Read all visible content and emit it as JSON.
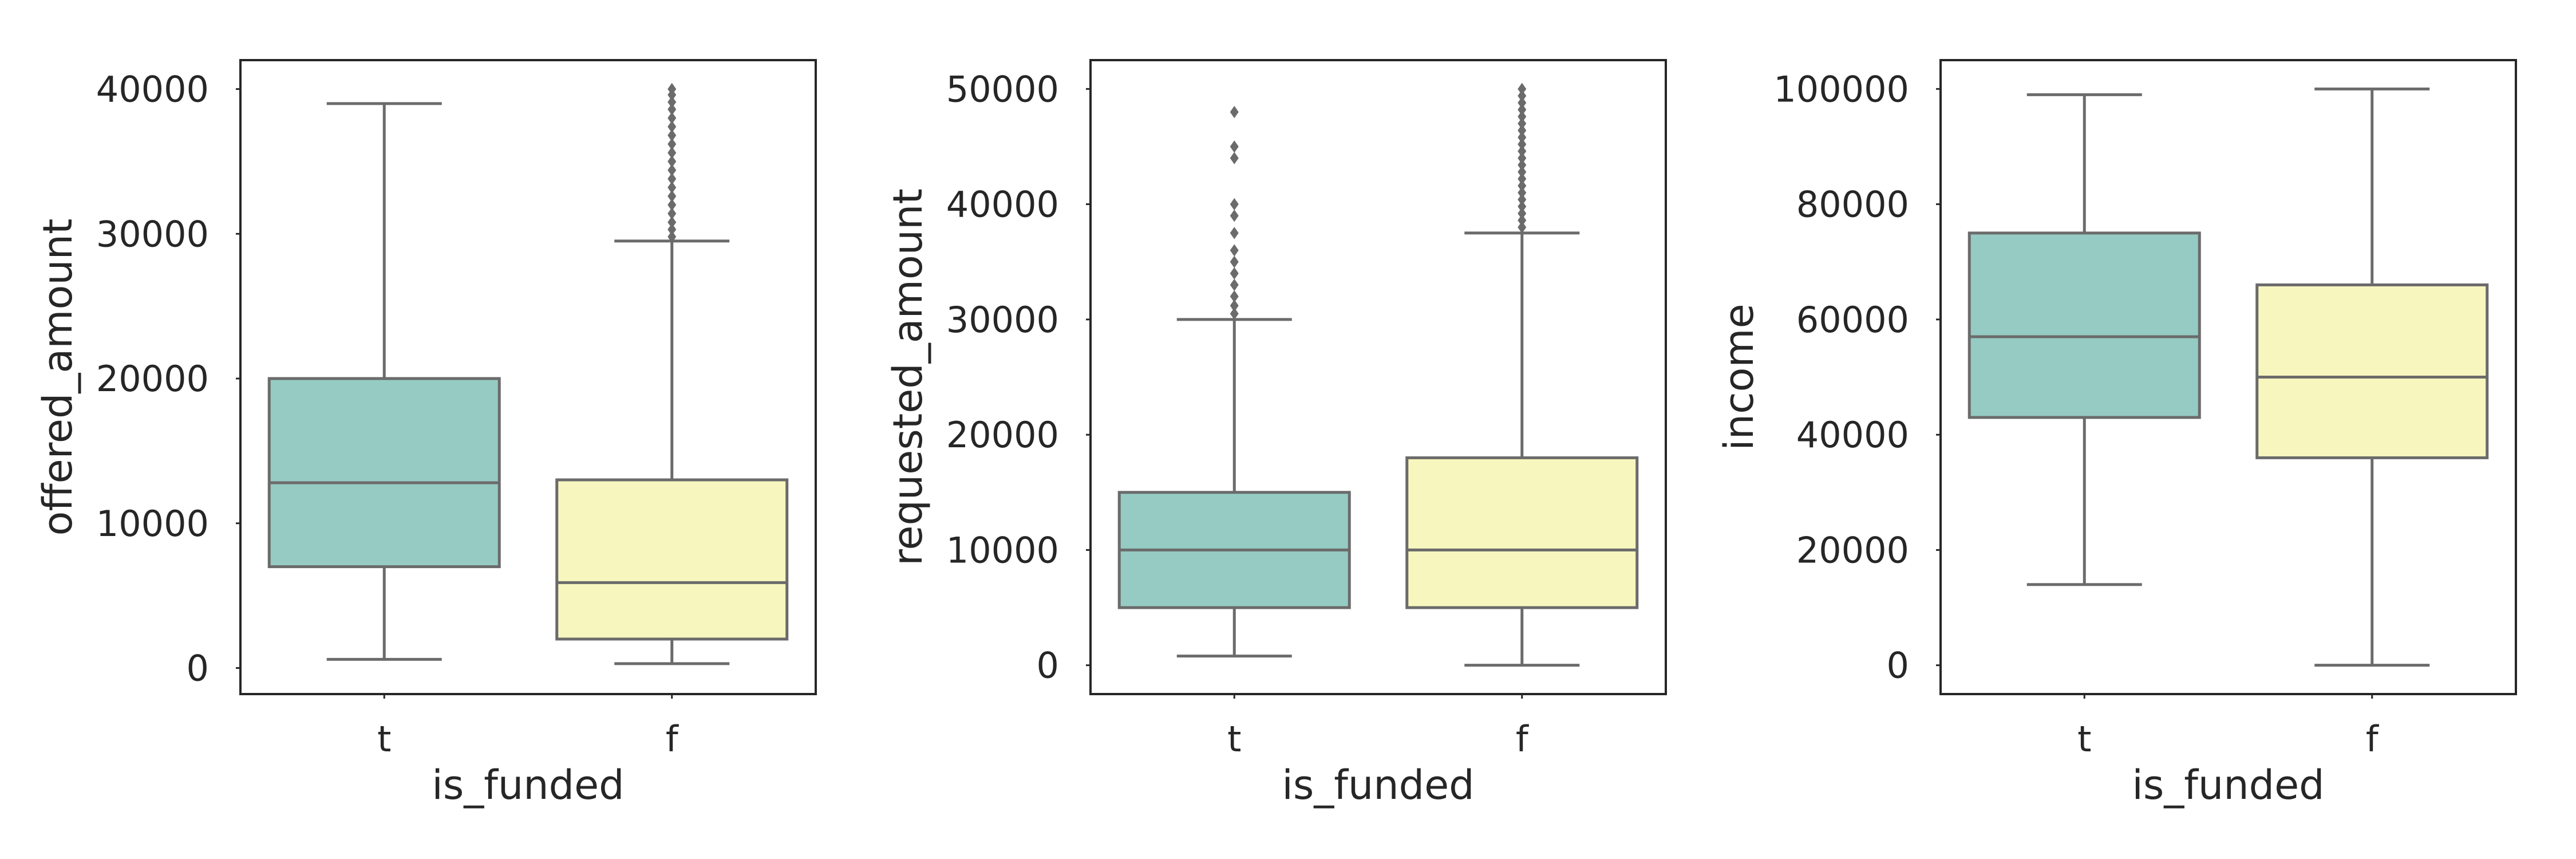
{
  "chart_data": [
    {
      "type": "box",
      "xlabel": "is_funded",
      "ylabel": "offered_amount",
      "ylim": [
        -1800,
        42000
      ],
      "yticks": [
        0,
        10000,
        20000,
        30000,
        40000
      ],
      "categories": [
        "t",
        "f"
      ],
      "boxes": [
        {
          "category": "t",
          "whisker_low": 600,
          "q1": 7000,
          "median": 12800,
          "q3": 20000,
          "whisker_high": 39000,
          "outliers": []
        },
        {
          "category": "f",
          "whisker_low": 300,
          "q1": 2000,
          "median": 5900,
          "q3": 13000,
          "whisker_high": 29500,
          "outliers": [
            29800,
            30300,
            30800,
            31400,
            32000,
            32600,
            33200,
            33800,
            34400,
            35000,
            35600,
            36200,
            36800,
            37400,
            38000,
            38600,
            39100,
            39600,
            40000
          ]
        }
      ]
    },
    {
      "type": "box",
      "xlabel": "is_funded",
      "ylabel": "requested_amount",
      "ylim": [
        -2500,
        52500
      ],
      "yticks": [
        0,
        10000,
        20000,
        30000,
        40000,
        50000
      ],
      "categories": [
        "t",
        "f"
      ],
      "boxes": [
        {
          "category": "t",
          "whisker_low": 800,
          "q1": 5000,
          "median": 10000,
          "q3": 15000,
          "whisker_high": 30000,
          "outliers": [
            30500,
            31200,
            32000,
            33000,
            34000,
            35000,
            36000,
            37500,
            39000,
            40000,
            44000,
            45000,
            48000
          ]
        },
        {
          "category": "f",
          "whisker_low": 0,
          "q1": 5000,
          "median": 10000,
          "q3": 18000,
          "whisker_high": 37500,
          "outliers": [
            38000,
            38600,
            39200,
            39800,
            40400,
            41000,
            41600,
            42200,
            42800,
            43400,
            44000,
            44600,
            45200,
            45800,
            46400,
            47000,
            47600,
            48200,
            48800,
            49400,
            50000
          ]
        }
      ]
    },
    {
      "type": "box",
      "xlabel": "is_funded",
      "ylabel": "income",
      "ylim": [
        -5000,
        105000
      ],
      "yticks": [
        0,
        20000,
        40000,
        60000,
        80000,
        100000
      ],
      "categories": [
        "t",
        "f"
      ],
      "boxes": [
        {
          "category": "t",
          "whisker_low": 14000,
          "q1": 43000,
          "median": 57000,
          "q3": 75000,
          "whisker_high": 99000,
          "outliers": []
        },
        {
          "category": "f",
          "whisker_low": 0,
          "q1": 36000,
          "median": 50000,
          "q3": 66000,
          "whisker_high": 100000,
          "outliers": []
        }
      ]
    }
  ],
  "colors": {
    "box_t": "#95cbc2",
    "box_f": "#f7f6be",
    "line": "#6b6b6b",
    "frame": "#262626",
    "text": "#262626"
  }
}
